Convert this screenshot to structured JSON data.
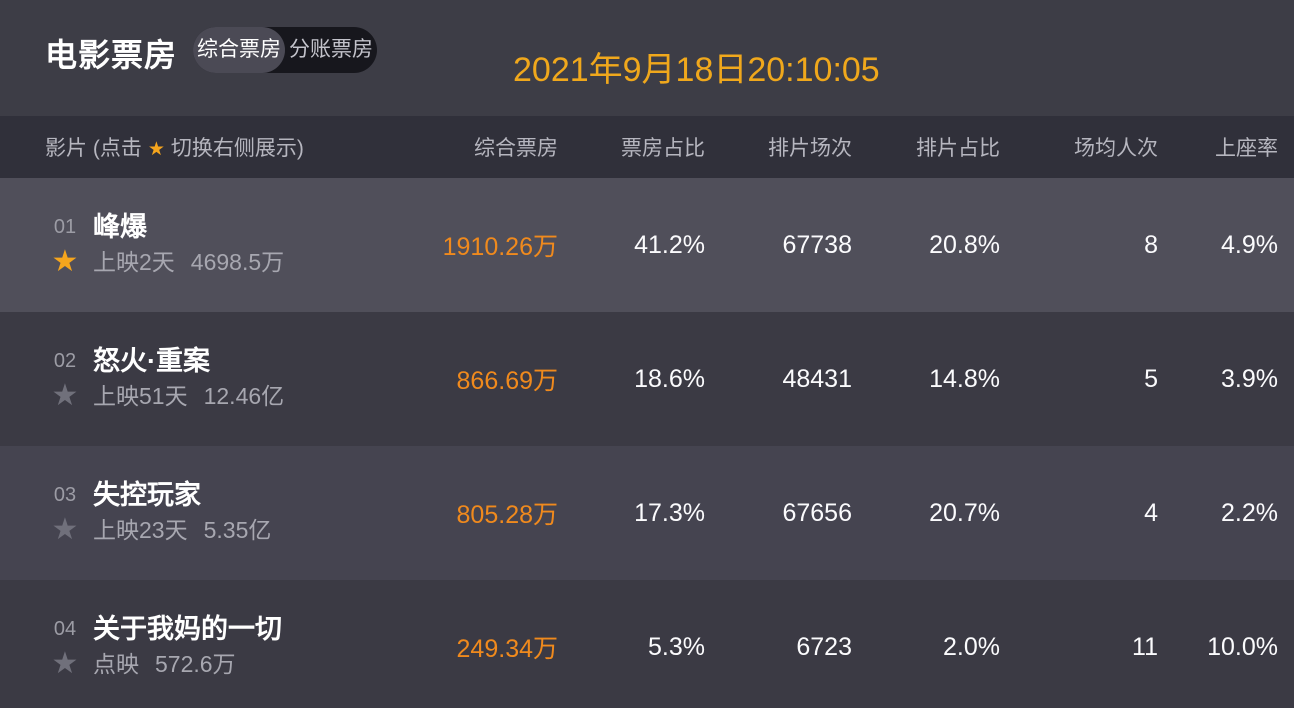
{
  "header": {
    "title": "电影票房",
    "tabs": [
      {
        "label": "综合票房",
        "selected": true
      },
      {
        "label": "分账票房",
        "selected": false
      }
    ],
    "datetime": "2021年9月18日20:10:05"
  },
  "icons": {
    "star": "★"
  },
  "colors": {
    "topbar_bg": "#3d3d46",
    "table_header_bg": "#30303a",
    "row_dark_bg": "#3b3a44",
    "row_highlight_bg": "#504f5a",
    "box_office_orange": "#f08a1d",
    "datetime_gold": "#f0a81c",
    "star_active": "#f5a51d",
    "star_inactive": "#70707b"
  },
  "table": {
    "movie_header": {
      "prefix": "影片 (点击",
      "star": "★",
      "suffix": "切换右侧展示)"
    },
    "columns": [
      "综合票房",
      "票房占比",
      "排片场次",
      "排片占比",
      "场均人次",
      "上座率"
    ],
    "rows": [
      {
        "rank": "01",
        "starred": true,
        "title": "峰爆",
        "release_info": "上映2天",
        "total_gross": "4698.5万",
        "box_office": "1910.26万",
        "box_office_share": "41.2%",
        "screenings": "67738",
        "screening_share": "20.8%",
        "avg_attendance": "8",
        "occupancy": "4.9%"
      },
      {
        "rank": "02",
        "starred": false,
        "title": "怒火·重案",
        "release_info": "上映51天",
        "total_gross": "12.46亿",
        "box_office": "866.69万",
        "box_office_share": "18.6%",
        "screenings": "48431",
        "screening_share": "14.8%",
        "avg_attendance": "5",
        "occupancy": "3.9%"
      },
      {
        "rank": "03",
        "starred": false,
        "title": "失控玩家",
        "release_info": "上映23天",
        "total_gross": "5.35亿",
        "box_office": "805.28万",
        "box_office_share": "17.3%",
        "screenings": "67656",
        "screening_share": "20.7%",
        "avg_attendance": "4",
        "occupancy": "2.2%"
      },
      {
        "rank": "04",
        "starred": false,
        "title": "关于我妈的一切",
        "release_info": "点映",
        "total_gross": "572.6万",
        "box_office": "249.34万",
        "box_office_share": "5.3%",
        "screenings": "6723",
        "screening_share": "2.0%",
        "avg_attendance": "11",
        "occupancy": "10.0%"
      }
    ]
  }
}
